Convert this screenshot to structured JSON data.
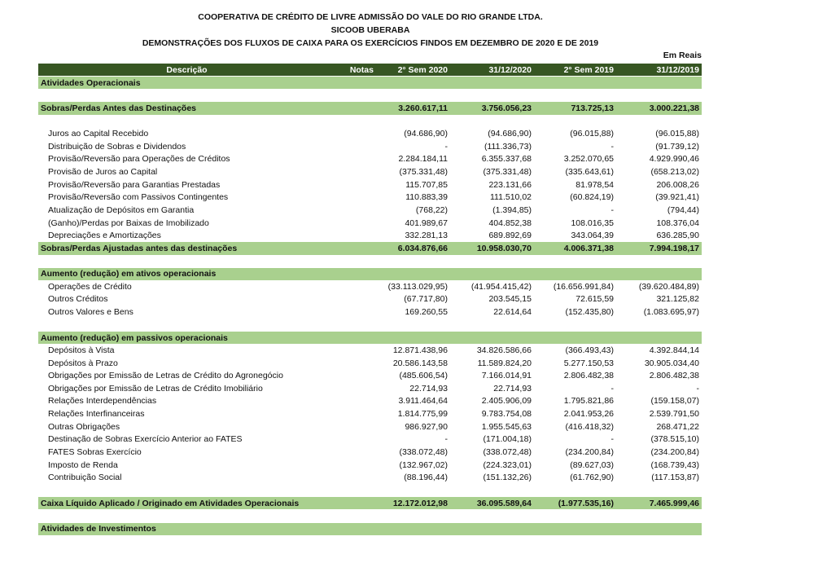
{
  "header": {
    "line1": "COOPERATIVA DE CRÉDITO DE LIVRE ADMISSÃO DO VALE DO RIO GRANDE LTDA.",
    "line2": "SICOOB UBERABA",
    "line3": "DEMONSTRAÇÕES DOS FLUXOS DE CAIXA PARA OS EXERCÍCIOS FINDOS EM DEZEMBRO DE 2020 E DE 2019",
    "unit": "Em Reais"
  },
  "colors": {
    "header_bg": "#375623",
    "section_bg": "#a9d08e"
  },
  "columns": [
    "Descrição",
    "Notas",
    "2° Sem 2020",
    "31/12/2020",
    "2° Sem 2019",
    "31/12/2019"
  ],
  "rows": [
    {
      "type": "section",
      "label": "Atividades Operacionais",
      "v": [
        "",
        "",
        "",
        ""
      ]
    },
    {
      "type": "blank"
    },
    {
      "type": "total",
      "label": "Sobras/Perdas Antes das Destinações",
      "v": [
        "3.260.617,11",
        "3.756.056,23",
        "713.725,13",
        "3.000.221,38"
      ]
    },
    {
      "type": "blank"
    },
    {
      "type": "item",
      "label": "Juros ao Capital Recebido",
      "v": [
        "(94.686,90)",
        "(94.686,90)",
        "(96.015,88)",
        "(96.015,88)"
      ]
    },
    {
      "type": "item",
      "label": "Distribuição de Sobras e Dividendos",
      "v": [
        "-",
        "(111.336,73)",
        "-",
        "(91.739,12)"
      ]
    },
    {
      "type": "item",
      "label": "Provisão/Reversão para Operações de Créditos",
      "v": [
        "2.284.184,11",
        "6.355.337,68",
        "3.252.070,65",
        "4.929.990,46"
      ]
    },
    {
      "type": "item",
      "label": "Provisão de Juros ao Capital",
      "v": [
        "(375.331,48)",
        "(375.331,48)",
        "(335.643,61)",
        "(658.213,02)"
      ]
    },
    {
      "type": "item",
      "label": "Provisão/Reversão para Garantias Prestadas",
      "v": [
        "115.707,85",
        "223.131,66",
        "81.978,54",
        "206.008,26"
      ]
    },
    {
      "type": "item",
      "label": "Provisão/Reversão com Passivos Contingentes",
      "v": [
        "110.883,39",
        "111.510,02",
        "(60.824,19)",
        "(39.921,41)"
      ]
    },
    {
      "type": "item",
      "label": "Atualização de Depósitos em Garantia",
      "v": [
        "(768,22)",
        "(1.394,85)",
        "-",
        "(794,44)"
      ]
    },
    {
      "type": "item",
      "label": "(Ganho)/Perdas por Baixas de Imobilizado",
      "v": [
        "401.989,67",
        "404.852,38",
        "108.016,35",
        "108.376,04"
      ]
    },
    {
      "type": "item",
      "label": "Depreciações e Amortizações",
      "v": [
        "332.281,13",
        "689.892,69",
        "343.064,39",
        "636.285,90"
      ]
    },
    {
      "type": "total",
      "label": "Sobras/Perdas Ajustadas antes das destinações",
      "v": [
        "6.034.876,66",
        "10.958.030,70",
        "4.006.371,38",
        "7.994.198,17"
      ]
    },
    {
      "type": "blank"
    },
    {
      "type": "section",
      "label": "Aumento (redução) em ativos operacionais",
      "v": [
        "",
        "",
        "",
        ""
      ]
    },
    {
      "type": "item",
      "label": "Operações de Crédito",
      "v": [
        "(33.113.029,95)",
        "(41.954.415,42)",
        "(16.656.991,84)",
        "(39.620.484,89)"
      ]
    },
    {
      "type": "item",
      "label": "Outros Créditos",
      "v": [
        "(67.717,80)",
        "203.545,15",
        "72.615,59",
        "321.125,82"
      ]
    },
    {
      "type": "item",
      "label": "Outros Valores e Bens",
      "v": [
        "169.260,55",
        "22.614,64",
        "(152.435,80)",
        "(1.083.695,97)"
      ]
    },
    {
      "type": "blank"
    },
    {
      "type": "section",
      "label": "Aumento (redução) em passivos operacionais",
      "v": [
        "",
        "",
        "",
        ""
      ]
    },
    {
      "type": "item",
      "label": "Depósitos à Vista",
      "v": [
        "12.871.438,96",
        "34.826.586,66",
        "(366.493,43)",
        "4.392.844,14"
      ]
    },
    {
      "type": "item",
      "label": "Depósitos à Prazo",
      "v": [
        "20.586.143,58",
        "11.589.824,20",
        "5.277.150,53",
        "30.905.034,40"
      ]
    },
    {
      "type": "item",
      "label": "Obrigações por Emissão de Letras de Crédito do Agronegócio",
      "v": [
        "(485.606,54)",
        "7.166.014,91",
        "2.806.482,38",
        "2.806.482,38"
      ]
    },
    {
      "type": "item",
      "label": "Obrigações por Emissão de Letras de Crédito Imobiliário",
      "v": [
        "22.714,93",
        "22.714,93",
        "-",
        "-"
      ]
    },
    {
      "type": "item",
      "label": "Relações Interdependências",
      "v": [
        "3.911.464,64",
        "2.405.906,09",
        "1.795.821,86",
        "(159.158,07)"
      ]
    },
    {
      "type": "item",
      "label": "Relações Interfinanceiras",
      "v": [
        "1.814.775,99",
        "9.783.754,08",
        "2.041.953,26",
        "2.539.791,50"
      ]
    },
    {
      "type": "item",
      "label": "Outras Obrigações",
      "v": [
        "986.927,90",
        "1.955.545,63",
        "(416.418,32)",
        "268.471,22"
      ]
    },
    {
      "type": "item",
      "label": "Destinação de Sobras Exercício Anterior ao FATES",
      "v": [
        "-",
        "(171.004,18)",
        "-",
        "(378.515,10)"
      ]
    },
    {
      "type": "item",
      "label": "FATES Sobras Exercício",
      "v": [
        "(338.072,48)",
        "(338.072,48)",
        "(234.200,84)",
        "(234.200,84)"
      ]
    },
    {
      "type": "item",
      "label": "Imposto de Renda",
      "v": [
        "(132.967,02)",
        "(224.323,01)",
        "(89.627,03)",
        "(168.739,43)"
      ]
    },
    {
      "type": "item",
      "label": "Contribuição Social",
      "v": [
        "(88.196,44)",
        "(151.132,26)",
        "(61.762,90)",
        "(117.153,87)"
      ]
    },
    {
      "type": "blank"
    },
    {
      "type": "total",
      "label": "Caixa Líquido Aplicado / Originado em Atividades Operacionais",
      "v": [
        "12.172.012,98",
        "36.095.589,64",
        "(1.977.535,16)",
        "7.465.999,46"
      ]
    },
    {
      "type": "blank"
    },
    {
      "type": "section",
      "label": "Atividades de Investimentos",
      "v": [
        "",
        "",
        "",
        ""
      ]
    }
  ]
}
